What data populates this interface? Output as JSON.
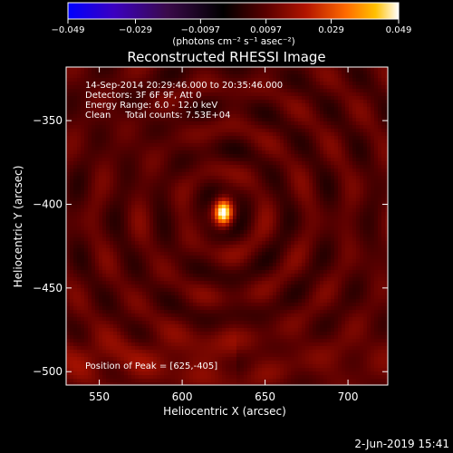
{
  "colorbar": {
    "ticks": [
      "−0.049",
      "−0.029",
      "−0.0097",
      "0.0097",
      "0.029",
      "0.049"
    ],
    "tick_values": [
      -0.049,
      -0.029,
      -0.0097,
      0.0097,
      0.029,
      0.049
    ],
    "range": [
      -0.049,
      0.049
    ],
    "colormap": [
      "#0000ff",
      "#3b00c0",
      "#3a0a4a",
      "#000000",
      "#5a0000",
      "#b21400",
      "#ff6a00",
      "#ffc000",
      "#ffffff"
    ],
    "units": "(photons cm⁻² s⁻¹ asec⁻²)"
  },
  "chart_data": {
    "type": "heatmap",
    "title": "Reconstructed RHESSI Image",
    "xlabel": "Heliocentric X (arcsec)",
    "ylabel": "Heliocentric Y (arcsec)",
    "xlim": [
      530,
      724
    ],
    "ylim": [
      -508,
      -318
    ],
    "x_ticks": [
      550,
      600,
      650,
      700
    ],
    "y_ticks": [
      -350,
      -400,
      -450,
      -500
    ],
    "peak": [
      625,
      -405
    ],
    "peak_value": 0.049
  },
  "info": {
    "line1": "14-Sep-2014 20:29:46.000 to 20:35:46.000",
    "line2": "Detectors: 3F 6F 9F, Att 0",
    "line3": "Energy Range: 6.0 - 12.0 keV",
    "line4": "Clean     Total counts: 7.53E+04",
    "peak_label": "Position of Peak = [625,-405]"
  },
  "footer": {
    "date": "2-Jun-2019 15:41"
  }
}
